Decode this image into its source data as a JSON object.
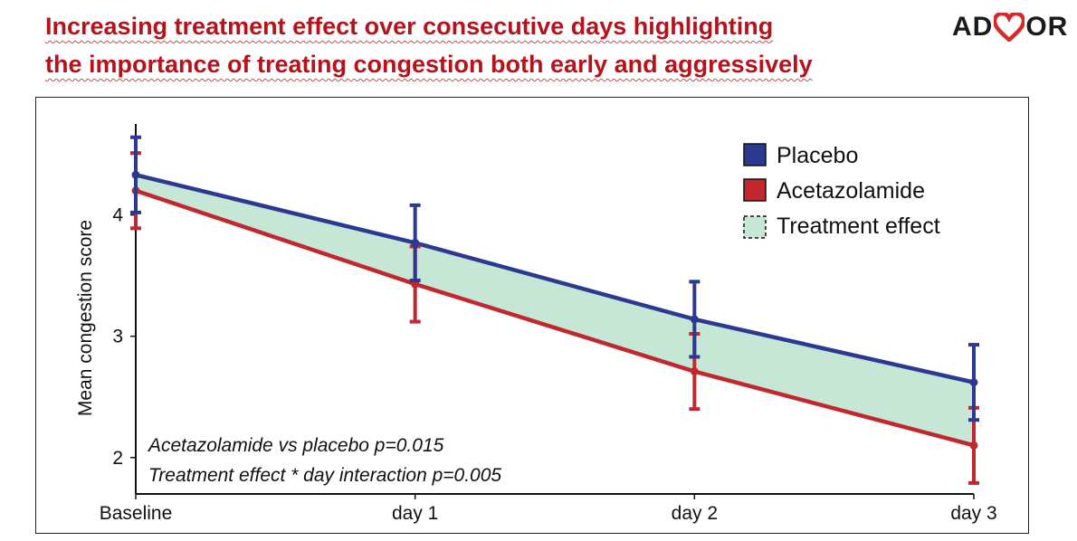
{
  "headline": {
    "line1": "Increasing treatment effect over consecutive days highlighting",
    "line2": "the importance of treating congestion both early and aggressively"
  },
  "logo": {
    "text_left": "AD",
    "text_right": "OR",
    "icon": "heart-icon",
    "heart_color": "#d42a2a"
  },
  "colors": {
    "placebo": "#2b3990",
    "acetazolamide": "#c1272d",
    "treatment_effect": "#c6e6d6"
  },
  "chart_data": {
    "type": "line",
    "x": [
      "Baseline",
      "day 1",
      "day 2",
      "day 3"
    ],
    "ylabel": "Mean congestion score",
    "ylim": [
      1.7,
      4.75
    ],
    "yticks": [
      2,
      3,
      4
    ],
    "ytick_labels": [
      "2",
      "3",
      "4"
    ],
    "series": [
      {
        "name": "Placebo",
        "key": "placebo",
        "values": [
          4.33,
          3.77,
          3.14,
          2.62
        ],
        "err_low": [
          4.02,
          3.46,
          2.83,
          2.31
        ],
        "err_high": [
          4.64,
          4.08,
          3.45,
          2.93
        ]
      },
      {
        "name": "Acetazolamide",
        "key": "acetazolamide",
        "values": [
          4.2,
          3.43,
          2.71,
          2.1
        ],
        "err_low": [
          3.89,
          3.12,
          2.4,
          1.79
        ],
        "err_high": [
          4.51,
          3.74,
          3.02,
          2.41
        ]
      }
    ],
    "shaded_area": {
      "name": "Treatment effect",
      "between": [
        "placebo",
        "acetazolamide"
      ]
    },
    "legend": {
      "position": "top-right",
      "entries": [
        "Placebo",
        "Acetazolamide",
        "Treatment effect"
      ]
    },
    "annotations": [
      "Acetazolamide vs placebo p=0.015",
      "Treatment effect * day interaction p=0.005"
    ],
    "grid": false
  }
}
